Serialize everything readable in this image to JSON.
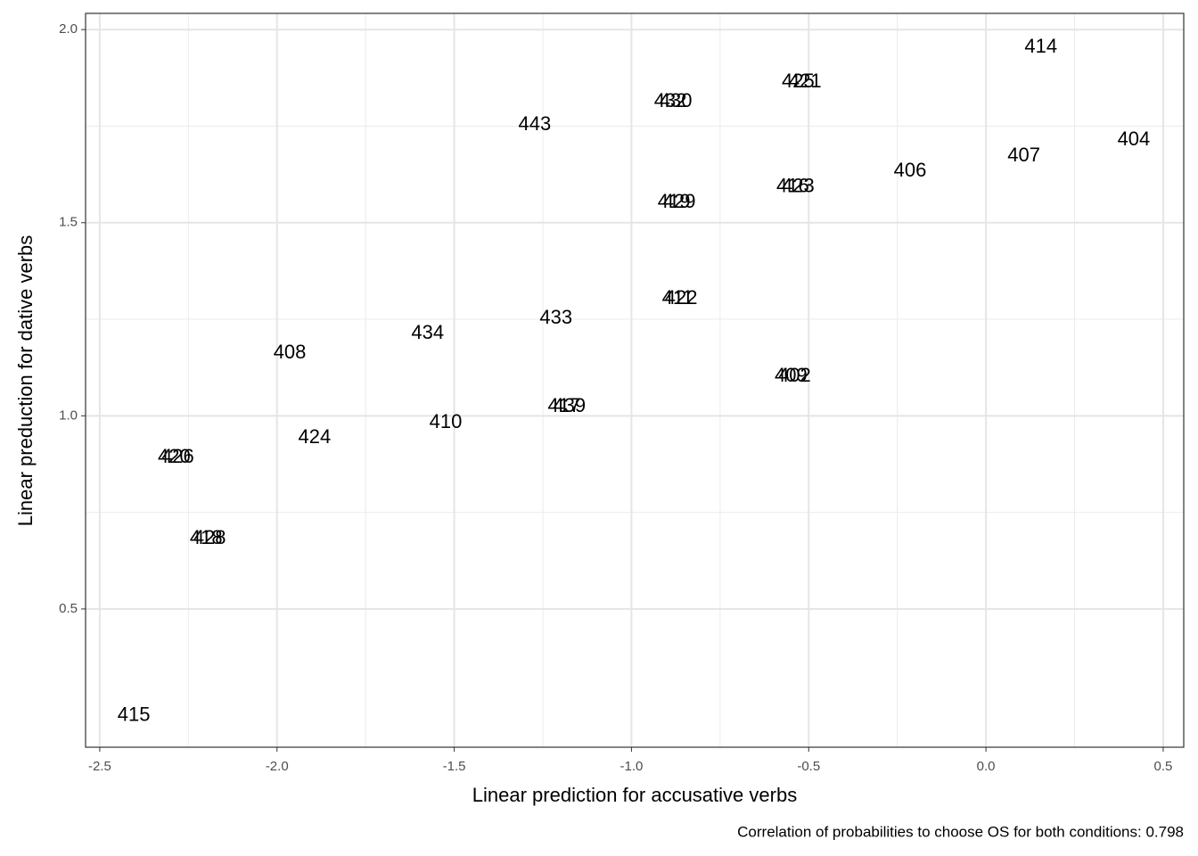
{
  "chart_data": {
    "type": "scatter",
    "xlabel": "Linear prediction for accusative verbs",
    "ylabel": "Linear preduction for dative verbs",
    "caption": "Correlation of probabilities to choose OS for both conditions: 0.798",
    "labels": [
      "414",
      "425",
      "421",
      "432",
      "430",
      "443",
      "406",
      "407",
      "404",
      "416",
      "423",
      "419",
      "429",
      "411",
      "422",
      "433",
      "434",
      "408",
      "409",
      "402",
      "417",
      "439",
      "410",
      "424",
      "420",
      "426",
      "418",
      "428",
      "415"
    ],
    "x": [
      0.155,
      -0.53,
      -0.51,
      -0.89,
      -0.875,
      -1.273,
      -0.214,
      0.107,
      0.417,
      -0.545,
      -0.53,
      -0.88,
      -0.865,
      -0.87,
      -0.86,
      -1.213,
      -1.575,
      -1.964,
      -0.55,
      -0.54,
      -1.19,
      -1.175,
      -1.524,
      -1.894,
      -2.29,
      -2.28,
      -2.2,
      -2.19,
      -2.404
    ],
    "values": [
      1.954,
      1.864,
      1.864,
      1.813,
      1.813,
      1.753,
      1.633,
      1.672,
      1.714,
      1.592,
      1.592,
      1.552,
      1.552,
      1.303,
      1.303,
      1.252,
      1.213,
      1.162,
      1.102,
      1.102,
      1.024,
      1.024,
      0.982,
      0.943,
      0.892,
      0.892,
      0.682,
      0.682,
      0.223
    ],
    "color": "#000000",
    "xlim": [
      -2.54,
      0.558
    ],
    "ylim": [
      0.142,
      2.042
    ],
    "xticks": [
      -2.5,
      {
        "value": -2.0,
        "label": "-2.0"
      },
      -1.5,
      {
        "value": -1.0,
        "label": "-1.0"
      },
      -0.5,
      {
        "value": 0.0,
        "label": "0.0"
      },
      0.5
    ],
    "yticks": [
      0.5,
      {
        "value": 1.0,
        "label": "1.0"
      },
      1.5,
      {
        "value": 2.0,
        "label": "2.0"
      }
    ],
    "grid": true
  }
}
